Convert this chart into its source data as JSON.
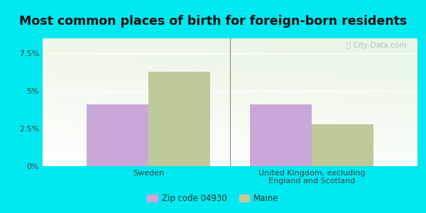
{
  "title": "Most common places of birth for foreign-born residents",
  "categories": [
    "Sweden",
    "United Kingdom, excluding\nEngland and Scotland"
  ],
  "zip_values": [
    4.1,
    4.1
  ],
  "maine_values": [
    6.3,
    2.8
  ],
  "zip_color": "#c8a8d8",
  "maine_color": "#bec99a",
  "outer_bg": "#00e8f0",
  "yticks": [
    0,
    2.5,
    5.0,
    7.5
  ],
  "ylabels": [
    "0%",
    "2.5%",
    "5%",
    "7.5%"
  ],
  "ylim": [
    0,
    8.5
  ],
  "bar_width": 0.38,
  "legend_zip": "Zip code 04930",
  "legend_maine": "Maine",
  "watermark": "ⓘ City-Data.com",
  "title_fontsize": 12.5
}
